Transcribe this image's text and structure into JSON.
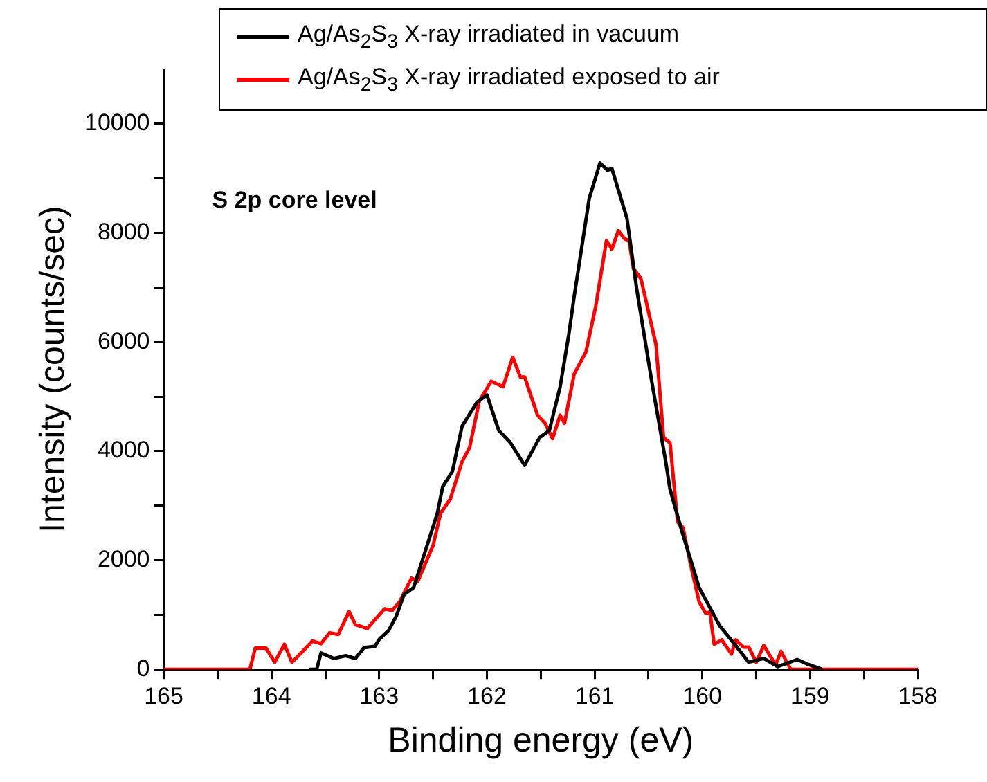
{
  "chart_data": {
    "type": "line",
    "xlabel": "Binding energy (eV)",
    "ylabel": "Intensity (counts/sec)",
    "xlim": [
      165,
      158
    ],
    "ylim": [
      0,
      11000
    ],
    "xticks": [
      165,
      {
        "value": 164.5,
        "label": null
      },
      164,
      {
        "value": 163.5,
        "label": null
      },
      163,
      {
        "value": 162.5,
        "label": null
      },
      162,
      {
        "value": 161.5,
        "label": null
      },
      161,
      {
        "value": 160.5,
        "label": null
      },
      160,
      {
        "value": 159.5,
        "label": null
      },
      159,
      {
        "value": 158.5,
        "label": null
      },
      158
    ],
    "yticks": [
      0,
      {
        "value": 1000,
        "label": null
      },
      2000,
      {
        "value": 3000,
        "label": null
      },
      4000,
      {
        "value": 5000,
        "label": null
      },
      6000,
      {
        "value": 7000,
        "label": null
      },
      8000,
      {
        "value": 9000,
        "label": null
      },
      10000
    ],
    "grid": false,
    "legend": "top",
    "marker": "none",
    "line_style": "solid",
    "annotations": [
      "S 2p core level"
    ],
    "series": [
      {
        "name": "Ag/As$_{2}$S$_{3}$ X-ray irradiated in vacuum",
        "color": "#000000",
        "x": [
          163.65,
          163.58,
          163.54,
          163.42,
          163.31,
          163.22,
          163.14,
          163.04,
          163.0,
          162.91,
          162.84,
          162.77,
          162.68,
          162.46,
          162.41,
          162.32,
          162.23,
          162.09,
          162.0,
          161.89,
          161.78,
          161.65,
          161.51,
          161.42,
          161.32,
          161.24,
          161.19,
          161.05,
          160.95,
          160.88,
          160.84,
          160.7,
          160.61,
          160.47,
          160.34,
          160.3,
          160.2,
          160.03,
          159.84,
          159.7,
          159.57,
          159.43,
          159.3,
          159.12,
          159.03,
          158.89
        ],
        "values": [
          0,
          0,
          300,
          200,
          250,
          200,
          400,
          420,
          550,
          720,
          980,
          1370,
          1500,
          2860,
          3350,
          3630,
          4460,
          4900,
          5030,
          4380,
          4150,
          3740,
          4250,
          4380,
          5180,
          6130,
          6830,
          8630,
          9280,
          9150,
          9180,
          8270,
          6980,
          5280,
          3810,
          3300,
          2600,
          1500,
          800,
          460,
          130,
          200,
          50,
          180,
          100,
          0
        ]
      },
      {
        "name": "Ag/As$_{2}$S$_{3}$ X-ray irradiated exposed to air",
        "color": "#ff0000",
        "x": [
          165,
          164.2,
          164.15,
          164.05,
          163.97,
          163.88,
          163.81,
          163.72,
          163.62,
          163.54,
          163.46,
          163.38,
          163.28,
          163.22,
          163.11,
          162.95,
          162.88,
          162.81,
          162.7,
          162.64,
          162.5,
          162.43,
          162.34,
          162.23,
          162.16,
          162.07,
          161.96,
          161.85,
          161.76,
          161.69,
          161.65,
          161.53,
          161.46,
          161.39,
          161.32,
          161.28,
          161.19,
          161.08,
          160.99,
          160.89,
          160.84,
          160.78,
          160.72,
          160.68,
          160.64,
          160.57,
          160.43,
          160.36,
          160.3,
          160.23,
          160.18,
          160.11,
          160.03,
          159.97,
          159.93,
          159.89,
          159.82,
          159.73,
          159.69,
          159.62,
          159.57,
          159.5,
          159.43,
          159.32,
          159.27,
          159.18,
          158
        ],
        "values": [
          0,
          0,
          390,
          390,
          130,
          460,
          130,
          310,
          520,
          470,
          670,
          640,
          1060,
          820,
          750,
          1110,
          1080,
          1240,
          1670,
          1620,
          2270,
          2860,
          3120,
          3810,
          4070,
          4920,
          5280,
          5180,
          5720,
          5360,
          5360,
          4660,
          4510,
          4230,
          4660,
          4510,
          5410,
          5820,
          6650,
          7860,
          7700,
          8040,
          7890,
          7860,
          7350,
          7160,
          5950,
          4250,
          4150,
          2700,
          2600,
          1930,
          1240,
          1030,
          1050,
          460,
          540,
          280,
          540,
          410,
          410,
          130,
          440,
          80,
          330,
          0,
          0
        ]
      }
    ]
  }
}
